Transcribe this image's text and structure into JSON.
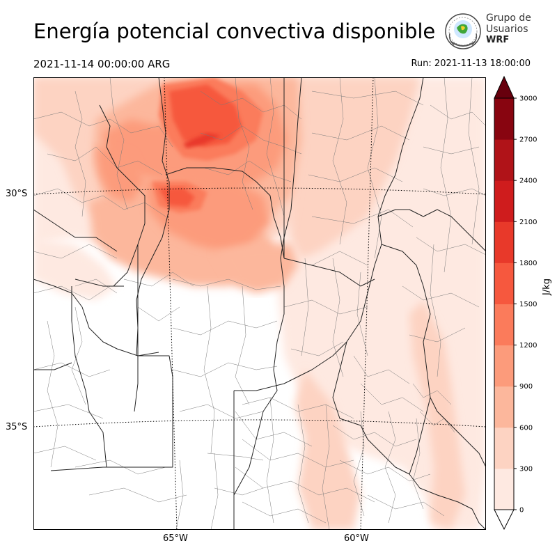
{
  "header": {
    "title": "Energía potencial convectiva disponible",
    "valid_time": "2021-11-14 00:00:00 ARG",
    "run_time": "Run: 2021-11-13 18:00:00"
  },
  "logo": {
    "line1": "Grupo de",
    "line2": "Usuarios",
    "line3": "WRF"
  },
  "map": {
    "lat_labels": [
      "30°S",
      "35°S"
    ],
    "lon_labels": [
      "65°W",
      "60°W"
    ]
  },
  "colorbar": {
    "unit": "J/kg",
    "ticks": [
      "0",
      "300",
      "600",
      "900",
      "1200",
      "1500",
      "1800",
      "2100",
      "2400",
      "2700",
      "3000"
    ],
    "colors": [
      "#fee9e1",
      "#fdd3c2",
      "#fcb79c",
      "#fc9b7b",
      "#fb7b5b",
      "#f6583e",
      "#e8392a",
      "#cf1c1d",
      "#b01318",
      "#880510"
    ]
  }
}
